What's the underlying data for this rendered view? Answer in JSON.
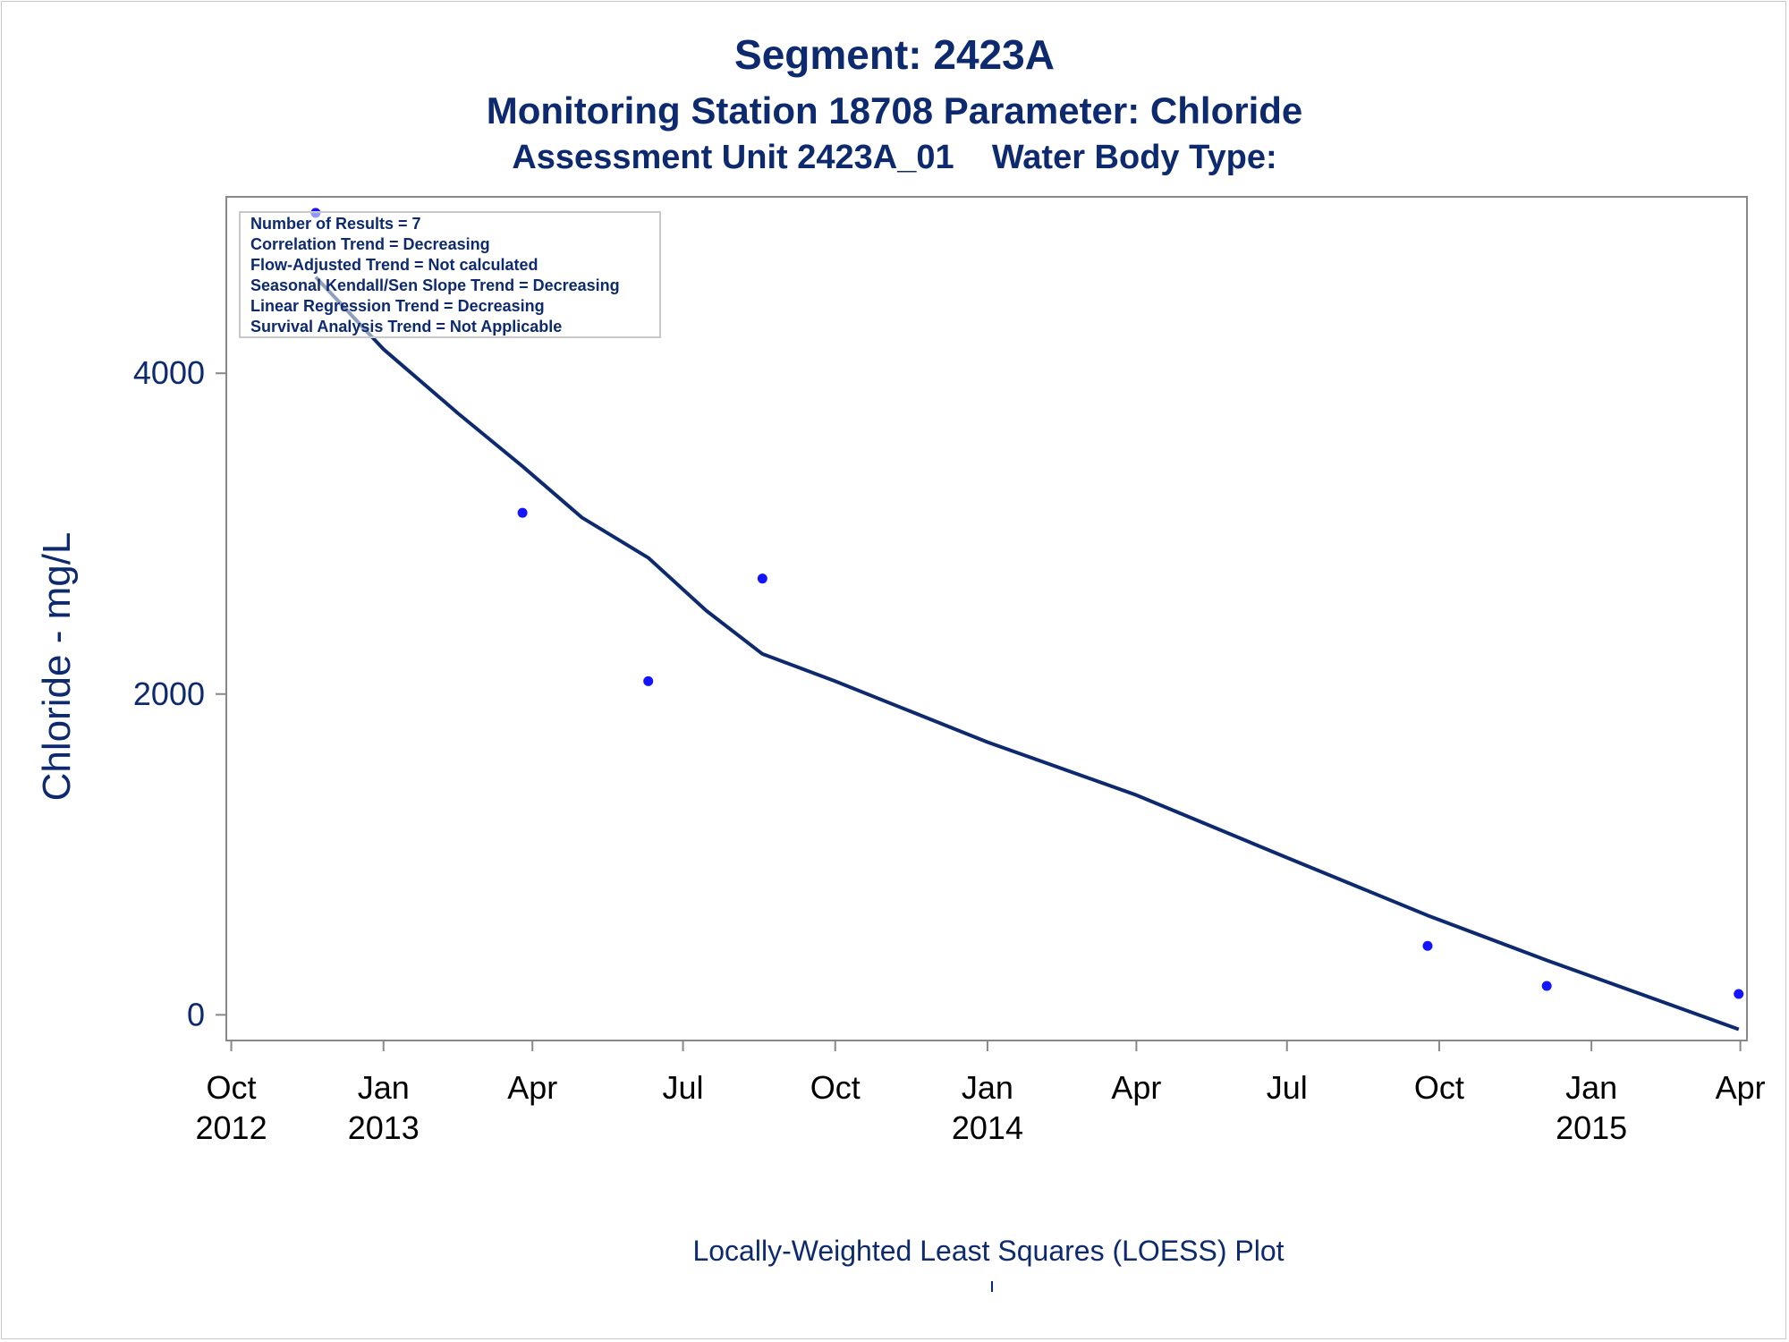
{
  "chart_data": {
    "type": "scatter",
    "title": "Segment: 2423A",
    "subtitle_lines": [
      "Monitoring Station 18708 Parameter: Chloride",
      "Assessment Unit 2423A_01    Water Body Type:"
    ],
    "ylabel": "Chloride - mg/L",
    "xlabel": "",
    "footnote": "Locally-Weighted Least Squares (LOESS) Plot",
    "ylim": [
      -160,
      5100
    ],
    "xlim": [
      "2012-09-28",
      "2015-04-05"
    ],
    "y_ticks": [
      0,
      2000,
      4000
    ],
    "x_ticks": [
      {
        "date": "2012-10-01",
        "month": "Oct",
        "year": "2012"
      },
      {
        "date": "2013-01-01",
        "month": "Jan",
        "year": "2013"
      },
      {
        "date": "2013-04-01",
        "month": "Apr",
        "year": ""
      },
      {
        "date": "2013-07-01",
        "month": "Jul",
        "year": ""
      },
      {
        "date": "2013-10-01",
        "month": "Oct",
        "year": ""
      },
      {
        "date": "2014-01-01",
        "month": "Jan",
        "year": "2014"
      },
      {
        "date": "2014-04-01",
        "month": "Apr",
        "year": ""
      },
      {
        "date": "2014-07-01",
        "month": "Jul",
        "year": ""
      },
      {
        "date": "2014-10-01",
        "month": "Oct",
        "year": ""
      },
      {
        "date": "2015-01-01",
        "month": "Jan",
        "year": "2015"
      },
      {
        "date": "2015-04-01",
        "month": "Apr",
        "year": ""
      }
    ],
    "points": [
      {
        "x": "2012-11-21",
        "y": 5000
      },
      {
        "x": "2013-03-26",
        "y": 3130
      },
      {
        "x": "2013-06-10",
        "y": 2080
      },
      {
        "x": "2013-08-18",
        "y": 2720
      },
      {
        "x": "2014-09-24",
        "y": 430
      },
      {
        "x": "2014-12-05",
        "y": 180
      },
      {
        "x": "2015-03-31",
        "y": 130
      }
    ],
    "loess_curve": [
      {
        "x": "2012-11-21",
        "y": 4600
      },
      {
        "x": "2013-01-01",
        "y": 4150
      },
      {
        "x": "2013-02-15",
        "y": 3750
      },
      {
        "x": "2013-03-26",
        "y": 3420
      },
      {
        "x": "2013-05-01",
        "y": 3100
      },
      {
        "x": "2013-06-10",
        "y": 2850
      },
      {
        "x": "2013-07-15",
        "y": 2520
      },
      {
        "x": "2013-08-18",
        "y": 2250
      },
      {
        "x": "2013-10-01",
        "y": 2080
      },
      {
        "x": "2014-01-01",
        "y": 1700
      },
      {
        "x": "2014-04-01",
        "y": 1370
      },
      {
        "x": "2014-07-01",
        "y": 980
      },
      {
        "x": "2014-09-24",
        "y": 620
      },
      {
        "x": "2014-12-05",
        "y": 340
      },
      {
        "x": "2015-03-31",
        "y": -90
      }
    ],
    "inset_box": [
      "Number of Results = 7",
      "Correlation Trend = Decreasing",
      "Flow-Adjusted Trend = Not calculated",
      "Seasonal Kendall/Sen Slope Trend = Decreasing",
      "Linear Regression Trend = Decreasing",
      "Survival Analysis Trend = Not Applicable"
    ],
    "colors": {
      "text": "#0d2a6f",
      "points": "#1414ff",
      "curve": "#0d2a6f",
      "axis": "#888888"
    },
    "grid": false
  }
}
